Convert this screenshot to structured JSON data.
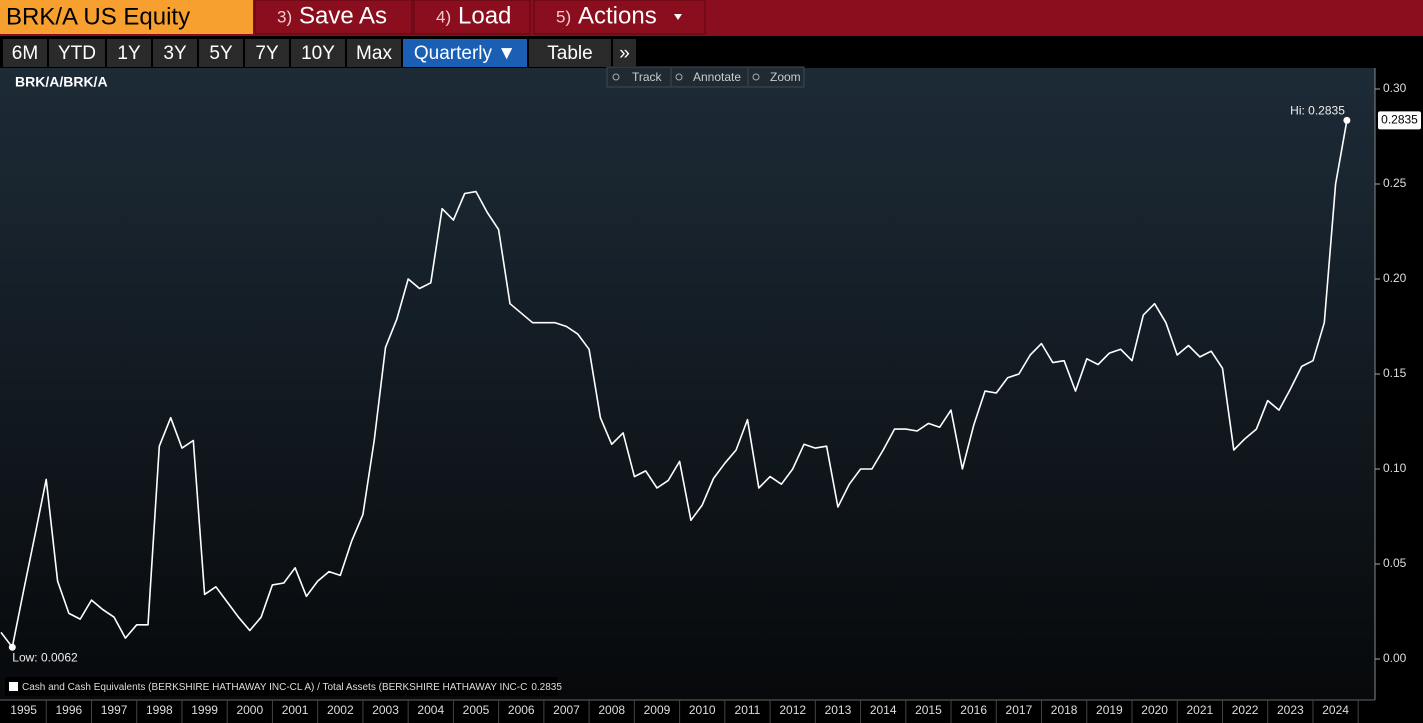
{
  "top_bar": {
    "ticker": "BRK/A US Equity",
    "menu": [
      {
        "key": "3)",
        "label": "Save As"
      },
      {
        "key": "4)",
        "label": "Load"
      },
      {
        "key": "5)",
        "label": "Actions"
      }
    ]
  },
  "range_bar": [
    "6M",
    "YTD",
    "1Y",
    "3Y",
    "5Y",
    "7Y",
    "10Y",
    "Max",
    "Quarterly ▼",
    "Table",
    "»"
  ],
  "chart_tools": [
    "Track",
    "Annotate",
    "Zoom"
  ],
  "chart_data": {
    "type": "line",
    "title": "BRK/A/BRK/A",
    "x_labels": [
      "1995",
      "1996",
      "1997",
      "1998",
      "1999",
      "2000",
      "2001",
      "2002",
      "2003",
      "2004",
      "2005",
      "2006",
      "2007",
      "2008",
      "2009",
      "2010",
      "2011",
      "2012",
      "2013",
      "2014",
      "2015",
      "2016",
      "2017",
      "2018",
      "2019",
      "2020",
      "2021",
      "2022",
      "2023",
      "2024"
    ],
    "series": [
      {
        "name": "Cash and Cash Equivalents (BERKSHIRE HATHAWAY INC-CL A) / Total Assets (BERKSHIRE HATHAWAY INC-C",
        "color": "#ffffff",
        "last_value_label": "0.2835",
        "values": [
          0.014,
          0.0062,
          0.036,
          0.065,
          0.0945,
          0.041,
          0.024,
          0.021,
          0.031,
          0.026,
          0.022,
          0.011,
          0.018,
          0.018,
          0.112,
          0.127,
          0.111,
          0.115,
          0.034,
          0.038,
          0.03,
          0.022,
          0.015,
          0.022,
          0.039,
          0.04,
          0.048,
          0.033,
          0.041,
          0.046,
          0.044,
          0.062,
          0.076,
          0.115,
          0.164,
          0.179,
          0.2,
          0.195,
          0.198,
          0.237,
          0.231,
          0.245,
          0.246,
          0.235,
          0.226,
          0.187,
          0.182,
          0.177,
          0.177,
          0.177,
          0.175,
          0.171,
          0.163,
          0.127,
          0.113,
          0.119,
          0.096,
          0.099,
          0.09,
          0.094,
          0.104,
          0.073,
          0.081,
          0.095,
          0.103,
          0.11,
          0.126,
          0.09,
          0.096,
          0.092,
          0.1,
          0.113,
          0.111,
          0.112,
          0.08,
          0.092,
          0.1,
          0.1,
          0.11,
          0.121,
          0.121,
          0.12,
          0.124,
          0.122,
          0.131,
          0.1,
          0.123,
          0.141,
          0.14,
          0.148,
          0.15,
          0.16,
          0.166,
          0.156,
          0.157,
          0.141,
          0.158,
          0.155,
          0.161,
          0.163,
          0.157,
          0.181,
          0.187,
          0.177,
          0.16,
          0.165,
          0.159,
          0.162,
          0.153,
          0.11,
          0.116,
          0.121,
          0.136,
          0.131,
          0.142,
          0.154,
          0.157,
          0.177,
          0.25,
          0.2835
        ]
      }
    ],
    "annotations": {
      "low": "Low: 0.0062",
      "high": "Hi: 0.2835"
    },
    "ylim": [
      -0.02,
      0.31
    ],
    "yticks": [
      {
        "value": 0,
        "label": "0.00"
      },
      {
        "value": 0.05,
        "label": "0.05"
      },
      {
        "value": 0.1,
        "label": "0.10"
      },
      {
        "value": 0.15,
        "label": "0.15"
      },
      {
        "value": 0.2,
        "label": "0.20"
      },
      {
        "value": 0.25,
        "label": "0.25"
      },
      {
        "value": 0.3,
        "label": "0.30"
      }
    ],
    "grid": false
  }
}
